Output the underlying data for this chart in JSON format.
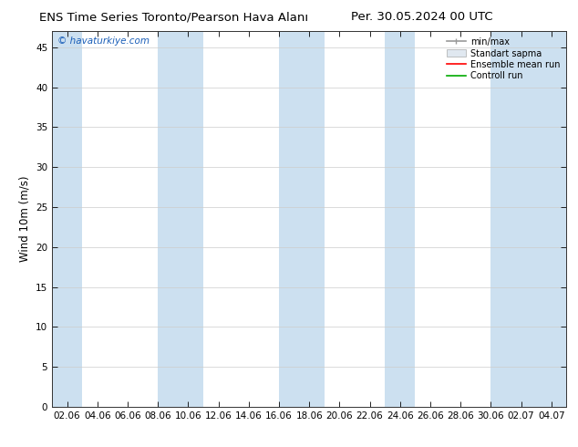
{
  "title": "ENS Time Series Toronto/Pearson Hava Alanı",
  "title_right": "Per. 30.05.2024 00 UTC",
  "watermark": "© havaturkiye.com",
  "ylabel": "Wind 10m (m/s)",
  "ylim": [
    0,
    47
  ],
  "yticks": [
    0,
    5,
    10,
    15,
    20,
    25,
    30,
    35,
    40,
    45
  ],
  "xtick_labels": [
    "02.06",
    "04.06",
    "06.06",
    "08.06",
    "10.06",
    "12.06",
    "14.06",
    "16.06",
    "18.06",
    "20.06",
    "22.06",
    "24.06",
    "26.06",
    "28.06",
    "30.06",
    "02.07",
    "04.07"
  ],
  "shaded_band_color": "#cce0f0",
  "background_color": "#ffffff",
  "legend_entries": [
    "min/max",
    "Standart sapma",
    "Ensemble mean run",
    "Controll run"
  ],
  "legend_line_colors": [
    "#999999",
    "#cccccc",
    "#ff0000",
    "#00aa00"
  ],
  "title_fontsize": 9.5,
  "tick_fontsize": 7.5,
  "ylabel_fontsize": 8.5,
  "watermark_color": "#1a5eb8"
}
